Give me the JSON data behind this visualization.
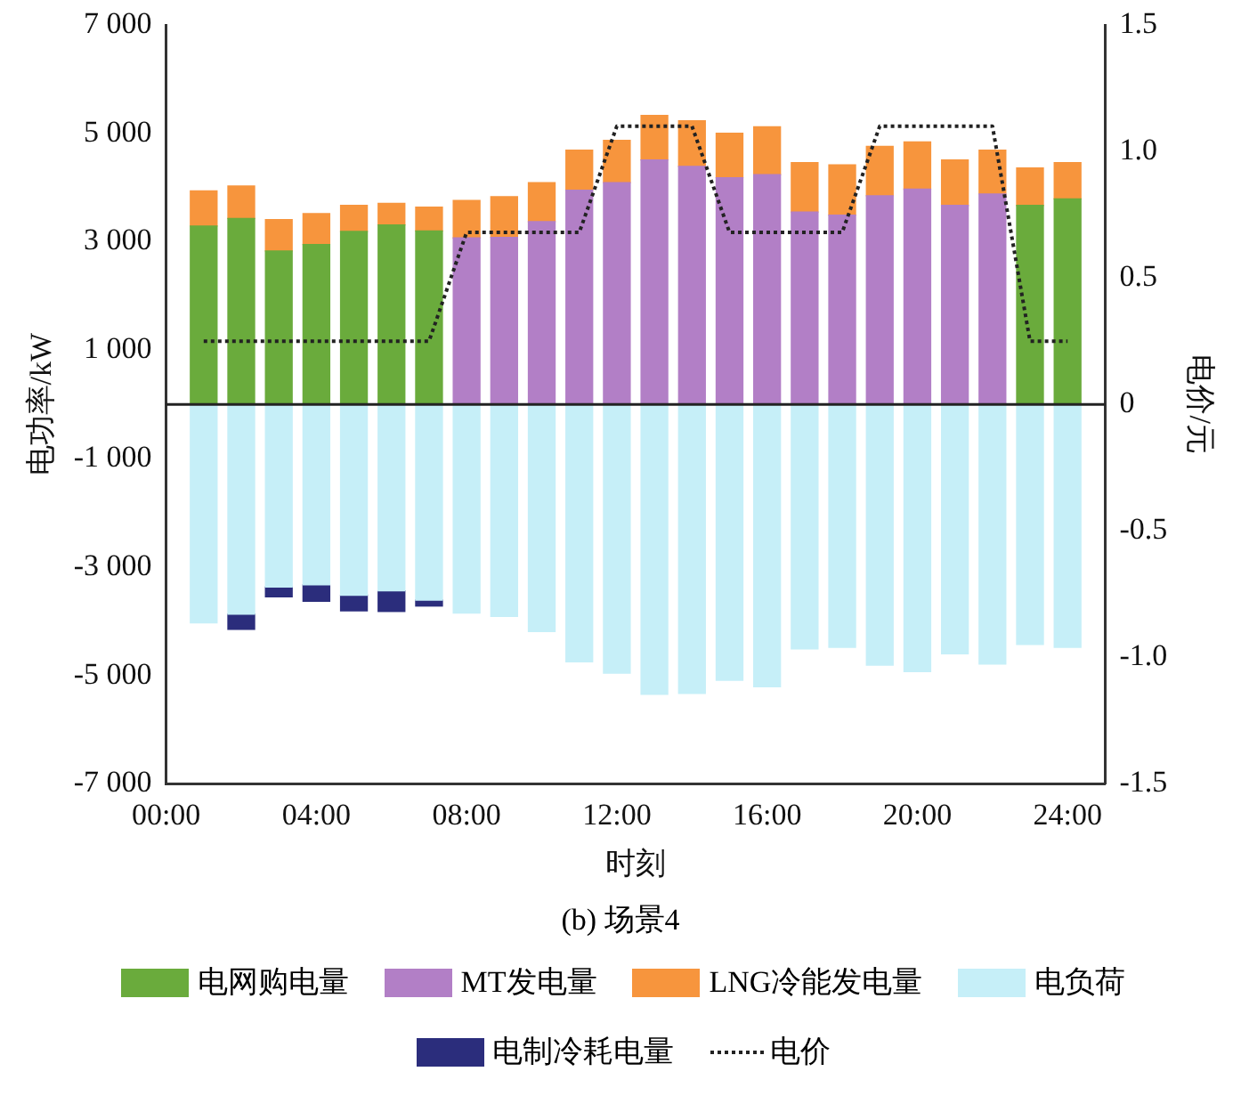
{
  "chart_data": {
    "type": "bar",
    "subtitle": "(b) 场景4",
    "xlabel": "时刻",
    "ylabel": "电功率/kW",
    "y2label": "电价/元",
    "stacked": true,
    "legend": "bottom",
    "ref_lines": [
      {
        "axis": "y",
        "value": 0,
        "color": "#222222"
      }
    ],
    "x": [
      1,
      2,
      3,
      4,
      5,
      6,
      7,
      8,
      9,
      10,
      11,
      12,
      13,
      14,
      15,
      16,
      17,
      18,
      19,
      20,
      21,
      22,
      23,
      24
    ],
    "xlim": [
      0,
      25
    ],
    "xticks": [
      {
        "value": 0,
        "label": "00:00"
      },
      {
        "value": 4,
        "label": "04:00"
      },
      {
        "value": 8,
        "label": "08:00"
      },
      {
        "value": 12,
        "label": "12:00"
      },
      {
        "value": 16,
        "label": "16:00"
      },
      {
        "value": 20,
        "label": "20:00"
      },
      {
        "value": 24,
        "label": "24:00"
      }
    ],
    "ylim": [
      -7000,
      7000
    ],
    "yticks": [
      {
        "value": 7000,
        "label": "7 000"
      },
      {
        "value": 5000,
        "label": "5 000"
      },
      {
        "value": 3000,
        "label": "3 000"
      },
      {
        "value": 1000,
        "label": "1 000"
      },
      {
        "value": -1000,
        "label": "-1 000"
      },
      {
        "value": -3000,
        "label": "-3 000"
      },
      {
        "value": -5000,
        "label": "-5 000"
      },
      {
        "value": -7000,
        "label": "-7 000"
      }
    ],
    "y2lim": [
      -1.5,
      1.5
    ],
    "y2ticks": [
      1.5,
      {
        "value": 1,
        "label": "1.0"
      },
      0.5,
      0,
      -0.5,
      {
        "value": -1,
        "label": "-1.0"
      },
      -1.5
    ],
    "series": [
      {
        "name": "电网购电量",
        "color": "#6aab3c",
        "values": [
          3290,
          3430,
          2830,
          2950,
          3190,
          3310,
          3200,
          null,
          null,
          null,
          null,
          null,
          null,
          null,
          null,
          null,
          null,
          null,
          null,
          null,
          null,
          null,
          3670,
          3790
        ]
      },
      {
        "name": "MT发电量",
        "color": "#b27fc6",
        "values": [
          null,
          null,
          null,
          null,
          null,
          null,
          null,
          3070,
          3080,
          3370,
          3950,
          4090,
          4510,
          4390,
          4180,
          4240,
          3550,
          3490,
          3850,
          3970,
          3670,
          3880,
          null,
          null
        ]
      },
      {
        "name": "LNG冷能发电量",
        "color": "#f7953d",
        "values": [
          650,
          600,
          580,
          570,
          480,
          400,
          440,
          690,
          750,
          720,
          740,
          780,
          820,
          840,
          820,
          880,
          910,
          930,
          910,
          870,
          840,
          810,
          690,
          670
        ]
      },
      {
        "name": "电负荷",
        "color": "#c6eff8",
        "values": [
          -4030,
          -3870,
          -3370,
          -3330,
          -3520,
          -3440,
          -3610,
          -3850,
          -3910,
          -4190,
          -4750,
          -4960,
          -5350,
          -5330,
          -5090,
          -5210,
          -4510,
          -4480,
          -4810,
          -4930,
          -4600,
          -4790,
          -4430,
          -4480
        ]
      },
      {
        "name": "电制冷耗电量",
        "color": "#2b2d7c",
        "values": [
          null,
          -280,
          -180,
          -300,
          -290,
          -380,
          -110,
          null,
          null,
          null,
          null,
          null,
          null,
          null,
          null,
          null,
          null,
          null,
          null,
          null,
          null,
          null,
          null,
          null
        ]
      },
      {
        "name": "电价",
        "type": "line",
        "axis": "y2",
        "color": "#222222",
        "line_style": "dotted",
        "marker": "none",
        "x": [
          1,
          7,
          8,
          11,
          12,
          14,
          15,
          18,
          19,
          22,
          23,
          24
        ],
        "values": [
          0.25,
          0.25,
          0.68,
          0.68,
          1.1,
          1.1,
          0.68,
          0.68,
          1.1,
          1.1,
          0.25,
          0.25
        ]
      }
    ]
  }
}
